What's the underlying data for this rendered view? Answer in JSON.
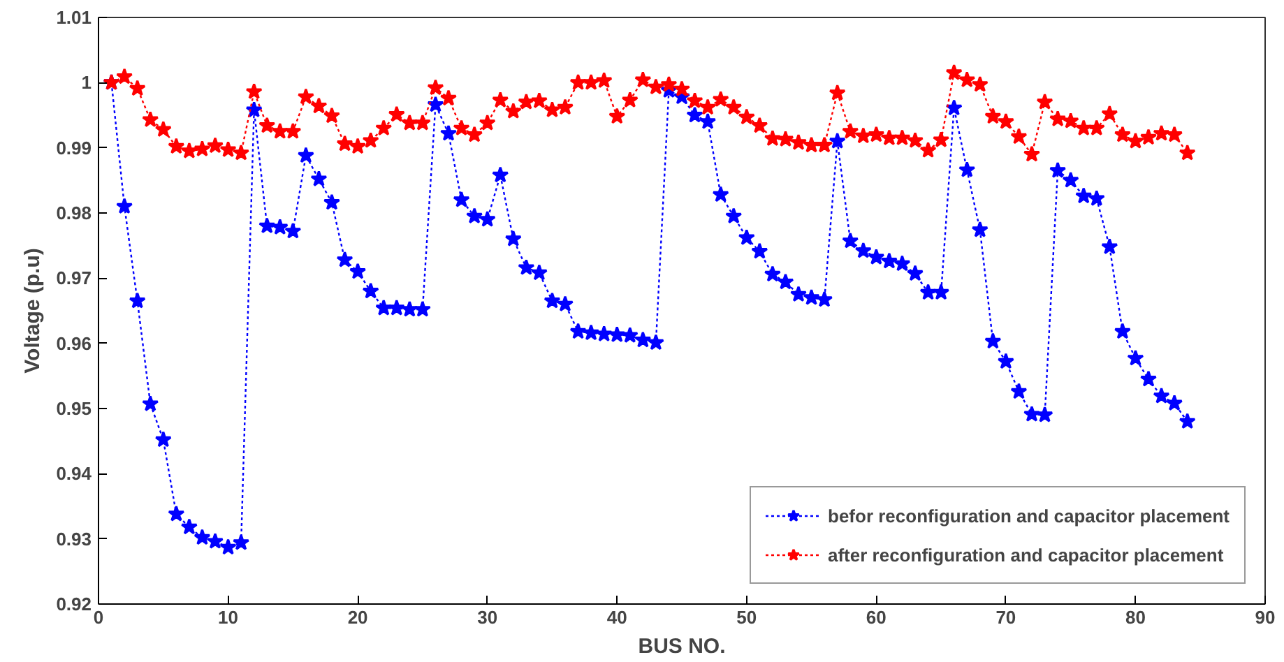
{
  "chart_data": {
    "type": "line",
    "xlabel": "BUS NO.",
    "ylabel": "Voltage (p.u)",
    "x": [
      1,
      2,
      3,
      4,
      5,
      6,
      7,
      8,
      9,
      10,
      11,
      12,
      13,
      14,
      15,
      16,
      17,
      18,
      19,
      20,
      21,
      22,
      23,
      24,
      25,
      26,
      27,
      28,
      29,
      30,
      31,
      32,
      33,
      34,
      35,
      36,
      37,
      38,
      39,
      40,
      41,
      42,
      43,
      44,
      45,
      46,
      47,
      48,
      49,
      50,
      51,
      52,
      53,
      54,
      55,
      56,
      57,
      58,
      59,
      60,
      61,
      62,
      63,
      64,
      65,
      66,
      67,
      68,
      69,
      70,
      71,
      72,
      73,
      74,
      75,
      76,
      77,
      78,
      79,
      80,
      81,
      82,
      83,
      84
    ],
    "series": [
      {
        "name": "befor reconfiguration and capacitor placement",
        "color": "#0000ff",
        "values": [
          1.0,
          0.981,
          0.9665,
          0.9507,
          0.9452,
          0.9338,
          0.9318,
          0.9302,
          0.9296,
          0.9287,
          0.9294,
          0.9958,
          0.978,
          0.9778,
          0.9772,
          0.9888,
          0.9852,
          0.9816,
          0.9728,
          0.971,
          0.968,
          0.9654,
          0.9654,
          0.9652,
          0.9652,
          0.9966,
          0.9922,
          0.982,
          0.9795,
          0.979,
          0.9858,
          0.976,
          0.9716,
          0.9708,
          0.9665,
          0.966,
          0.9618,
          0.9616,
          0.9614,
          0.9613,
          0.9612,
          0.9605,
          0.9601,
          0.9988,
          0.9978,
          0.995,
          0.994,
          0.9828,
          0.9795,
          0.9762,
          0.9741,
          0.9706,
          0.9694,
          0.9675,
          0.967,
          0.9667,
          0.991,
          0.9757,
          0.9742,
          0.9732,
          0.9726,
          0.9722,
          0.9707,
          0.9678,
          0.9678,
          0.9961,
          0.9866,
          0.9774,
          0.9603,
          0.9572,
          0.9526,
          0.9491,
          0.949,
          0.9865,
          0.985,
          0.9826,
          0.9822,
          0.9748,
          0.9618,
          0.9577,
          0.9545,
          0.9519,
          0.9508,
          0.948
        ]
      },
      {
        "name": "after reconfiguration and capacitor placement",
        "color": "#ff0000",
        "values": [
          1.0,
          1.0009,
          0.9991,
          0.9943,
          0.9928,
          0.9902,
          0.9895,
          0.9898,
          0.9903,
          0.9897,
          0.9892,
          0.9986,
          0.9934,
          0.9925,
          0.9925,
          0.9978,
          0.9964,
          0.9949,
          0.9906,
          0.9902,
          0.9911,
          0.993,
          0.9951,
          0.9938,
          0.9938,
          0.9992,
          0.9976,
          0.993,
          0.992,
          0.9938,
          0.9973,
          0.9956,
          0.997,
          0.9972,
          0.9958,
          0.9962,
          1.0,
          1.0,
          1.0003,
          0.9948,
          0.9973,
          1.0004,
          0.9993,
          0.9997,
          0.999,
          0.9972,
          0.9962,
          0.9974,
          0.9962,
          0.9947,
          0.9934,
          0.9914,
          0.9913,
          0.9908,
          0.9904,
          0.9904,
          0.9984,
          0.9925,
          0.9918,
          0.992,
          0.9915,
          0.9915,
          0.9911,
          0.9896,
          0.9912,
          1.0015,
          1.0004,
          0.9997,
          0.9948,
          0.994,
          0.9917,
          0.989,
          0.997,
          0.9944,
          0.9941,
          0.993,
          0.993,
          0.9952,
          0.992,
          0.991,
          0.9916,
          0.9922,
          0.992,
          0.9892
        ]
      }
    ],
    "xlim": [
      0,
      90
    ],
    "xticks": [
      0,
      10,
      20,
      30,
      40,
      50,
      60,
      70,
      80,
      90
    ],
    "ylim": [
      0.92,
      1.01
    ],
    "yticks": [
      0.92,
      0.93,
      0.94,
      0.95,
      0.96,
      0.97,
      0.98,
      0.99,
      1,
      1.01
    ],
    "grid": false,
    "legend": "bottom right",
    "marker": "star",
    "line_style": "dotted"
  }
}
